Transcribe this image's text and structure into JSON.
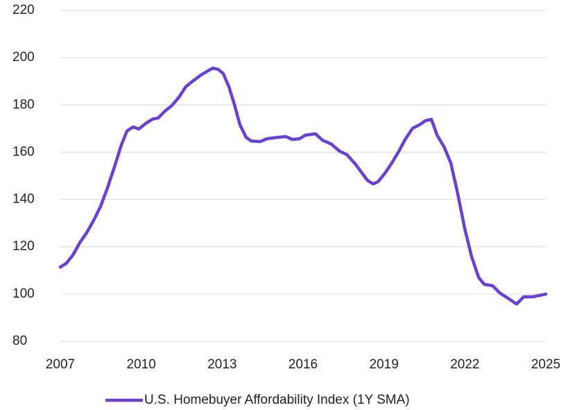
{
  "chart_data": {
    "type": "line",
    "x": [
      2007.0,
      2007.21,
      2007.46,
      2007.72,
      2007.98,
      2008.23,
      2008.49,
      2008.75,
      2009.01,
      2009.26,
      2009.47,
      2009.7,
      2009.91,
      2010.17,
      2010.42,
      2010.63,
      2010.88,
      2011.14,
      2011.4,
      2011.65,
      2011.91,
      2012.22,
      2012.48,
      2012.66,
      2012.86,
      2013.04,
      2013.25,
      2013.45,
      2013.66,
      2013.89,
      2014.07,
      2014.41,
      2014.66,
      2015.05,
      2015.36,
      2015.61,
      2015.87,
      2016.08,
      2016.46,
      2016.72,
      2017.05,
      2017.36,
      2017.62,
      2017.93,
      2018.19,
      2018.39,
      2018.6,
      2018.78,
      2019.03,
      2019.29,
      2019.55,
      2019.8,
      2020.06,
      2020.32,
      2020.53,
      2020.76,
      2020.97,
      2021.23,
      2021.48,
      2021.74,
      2022.0,
      2022.25,
      2022.51,
      2022.72,
      2023.03,
      2023.29,
      2023.6,
      2023.92,
      2024.18,
      2024.51,
      2025.0
    ],
    "series": [
      {
        "name": "U.S. Homebuyer Affordability Index (1Y SMA)",
        "color": "#6a3fd6",
        "values": [
          111.4,
          112.9,
          116.4,
          121.7,
          126,
          131,
          137,
          145,
          154,
          163,
          169,
          170.7,
          169.8,
          172.2,
          174,
          174.5,
          177.4,
          179.8,
          183.3,
          187.7,
          190.1,
          192.7,
          194.5,
          195.6,
          195,
          193.3,
          187.7,
          180.4,
          171.6,
          166.3,
          164.8,
          164.5,
          165.7,
          166.3,
          166.6,
          165.4,
          165.7,
          167.2,
          167.8,
          165.1,
          163.4,
          160.4,
          159,
          155.1,
          151.1,
          148.1,
          146.6,
          147.5,
          151,
          155.4,
          160.4,
          165.7,
          170.1,
          171.6,
          173.3,
          173.9,
          167.2,
          162.2,
          155.4,
          142.2,
          127.5,
          115.8,
          107,
          104.1,
          103.5,
          100.5,
          98.2,
          95.8,
          98.8,
          98.8,
          100
        ]
      }
    ],
    "xlim": [
      2007,
      2025
    ],
    "xticks": [
      2007,
      2010,
      2013,
      2016,
      2019,
      2022,
      2025
    ],
    "ylim": [
      80,
      220
    ],
    "yticks": [
      80,
      100,
      120,
      140,
      160,
      180,
      200,
      220
    ],
    "grid": true,
    "legend": "bottom"
  }
}
